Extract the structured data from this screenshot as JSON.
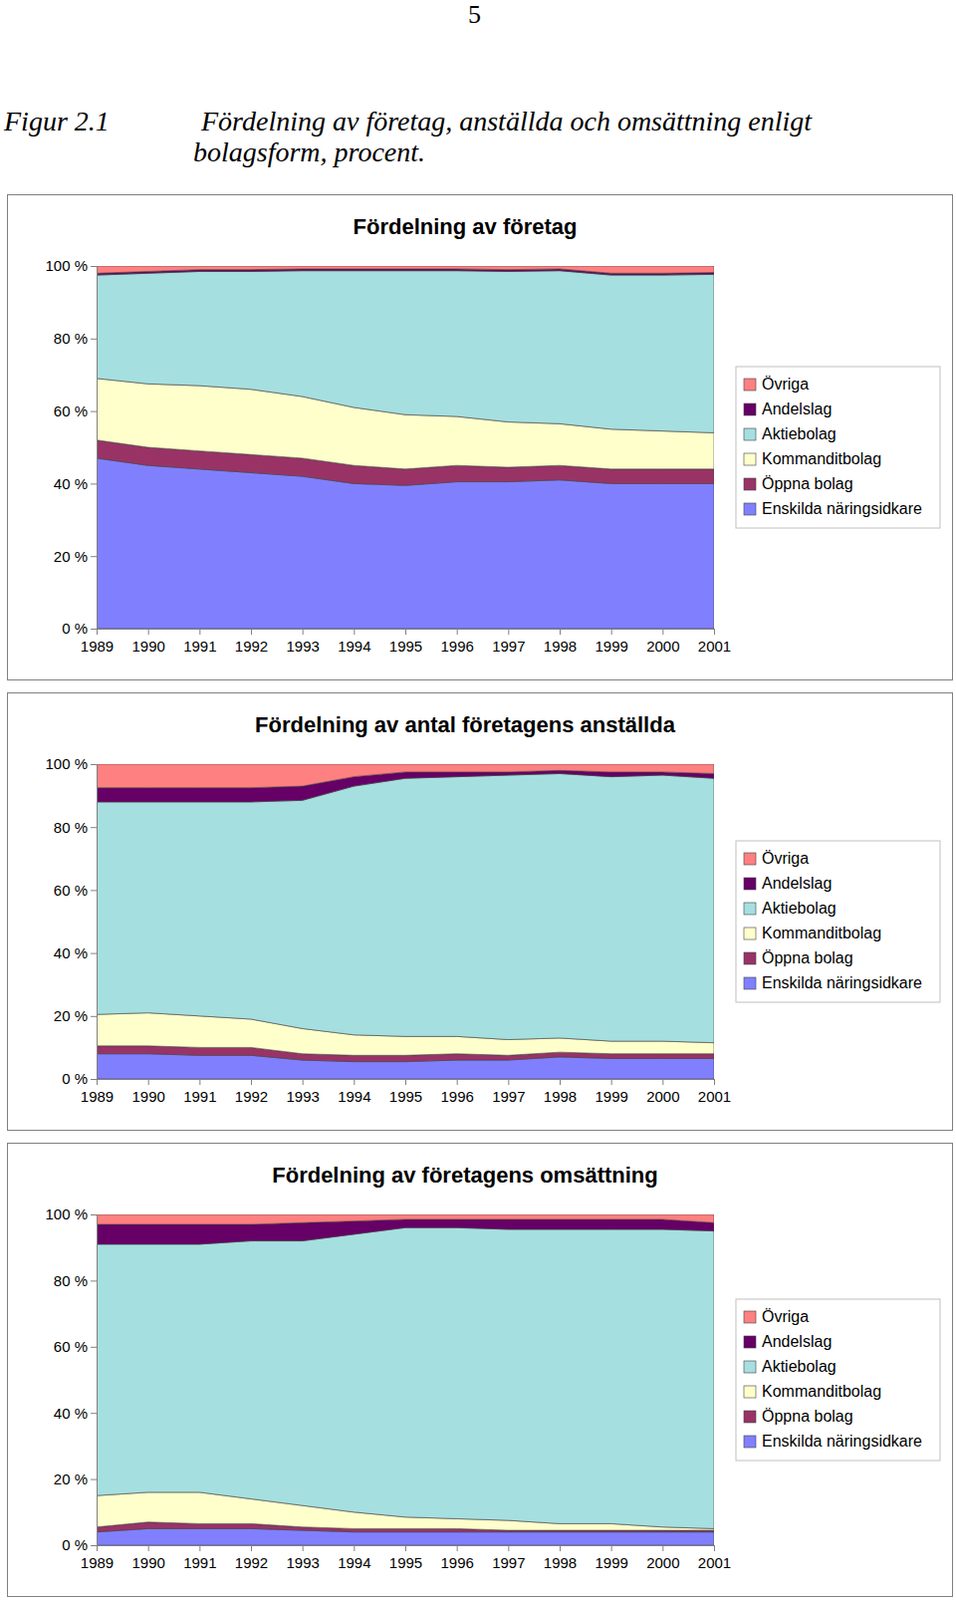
{
  "page_number": "5",
  "caption_label": "Figur 2.1",
  "caption": "Fördelning av företag, anställda och omsättning enligt bolagsform, procent.",
  "chart_data": [
    {
      "type": "area",
      "stacked": true,
      "grid": false,
      "legend": "right",
      "title": "Fördelning av företag",
      "x": [
        1989,
        1990,
        1991,
        1992,
        1993,
        1994,
        1995,
        1996,
        1997,
        1998,
        1999,
        2000,
        2001
      ],
      "xlim": [
        1989,
        2001
      ],
      "xticks": [
        1989,
        1990,
        1991,
        1992,
        1993,
        1994,
        1995,
        1996,
        1997,
        1998,
        1999,
        2000,
        2001
      ],
      "ylim": [
        0,
        100
      ],
      "yticks": [
        {
          "value": 0,
          "label": "0 %"
        },
        {
          "value": 20,
          "label": "20 %"
        },
        {
          "value": 40,
          "label": "40 %"
        },
        {
          "value": 60,
          "label": "60 %"
        },
        {
          "value": 80,
          "label": "80 %"
        },
        {
          "value": 100,
          "label": "100 %"
        }
      ],
      "series": [
        {
          "name": "Enskilda näringsidkare",
          "color": "#8080ff",
          "values": [
            47,
            45,
            44,
            43,
            42,
            40,
            39.5,
            40.5,
            40.5,
            41,
            40,
            40,
            40
          ]
        },
        {
          "name": "Öppna bolag",
          "color": "#993366",
          "values": [
            5,
            5,
            5,
            5,
            5,
            5,
            4.5,
            4.5,
            4,
            4,
            4,
            4,
            4
          ]
        },
        {
          "name": "Kommanditbolag",
          "color": "#ffffcc",
          "values": [
            17,
            17.5,
            18,
            18,
            17,
            16,
            15,
            13.5,
            12.5,
            11.5,
            11,
            10.5,
            10
          ]
        },
        {
          "name": "Aktiebolag",
          "color": "#a6dfe0",
          "values": [
            28.5,
            30.5,
            31.5,
            32.5,
            34.7,
            37.7,
            39.7,
            40.2,
            41.5,
            42.2,
            42.5,
            43,
            43.7
          ]
        },
        {
          "name": "Andelslag",
          "color": "#660066",
          "values": [
            0.5,
            0.5,
            0.5,
            0.5,
            0.5,
            0.5,
            0.5,
            0.5,
            0.5,
            0.5,
            0.5,
            0.5,
            0.5
          ]
        },
        {
          "name": "Övriga",
          "color": "#ff8080",
          "values": [
            2,
            1.5,
            1,
            1,
            0.8,
            0.8,
            0.8,
            0.8,
            1,
            0.8,
            2,
            2,
            1.8
          ]
        }
      ]
    },
    {
      "type": "area",
      "stacked": true,
      "grid": false,
      "legend": "right",
      "title": "Fördelning av antal företagens anställda",
      "x": [
        1989,
        1990,
        1991,
        1992,
        1993,
        1994,
        1995,
        1996,
        1997,
        1998,
        1999,
        2000,
        2001
      ],
      "xlim": [
        1989,
        2001
      ],
      "xticks": [
        1989,
        1990,
        1991,
        1992,
        1993,
        1994,
        1995,
        1996,
        1997,
        1998,
        1999,
        2000,
        2001
      ],
      "ylim": [
        0,
        100
      ],
      "yticks": [
        {
          "value": 0,
          "label": "0 %"
        },
        {
          "value": 20,
          "label": "20 %"
        },
        {
          "value": 40,
          "label": "40 %"
        },
        {
          "value": 60,
          "label": "60 %"
        },
        {
          "value": 80,
          "label": "80 %"
        },
        {
          "value": 100,
          "label": "100 %"
        }
      ],
      "series": [
        {
          "name": "Enskilda näringsidkare",
          "color": "#8080ff",
          "values": [
            8,
            8,
            7.5,
            7.5,
            6,
            5.5,
            5.5,
            6,
            6,
            7,
            6.5,
            6.5,
            6.5
          ]
        },
        {
          "name": "Öppna bolag",
          "color": "#993366",
          "values": [
            2.5,
            2.5,
            2.5,
            2.5,
            2,
            2,
            2,
            2,
            1.5,
            1.5,
            1.5,
            1.5,
            1.5
          ]
        },
        {
          "name": "Kommanditbolag",
          "color": "#ffffcc",
          "values": [
            10,
            10.5,
            10,
            9,
            8,
            6.5,
            6,
            5.5,
            5,
            4.5,
            4,
            4,
            3.5
          ]
        },
        {
          "name": "Aktiebolag",
          "color": "#a6dfe0",
          "values": [
            67.5,
            67,
            68,
            69,
            72.5,
            79,
            82,
            82.5,
            84,
            84,
            84,
            84.5,
            84
          ]
        },
        {
          "name": "Andelslag",
          "color": "#660066",
          "values": [
            4.5,
            4.5,
            4.5,
            4.5,
            4.5,
            3,
            2,
            1.5,
            1,
            1,
            1.5,
            1,
            1.5
          ]
        },
        {
          "name": "Övriga",
          "color": "#ff8080",
          "values": [
            7.5,
            7.5,
            7.5,
            7.5,
            7,
            4,
            2.5,
            2.5,
            2.5,
            2,
            2.5,
            2.5,
            3
          ]
        }
      ]
    },
    {
      "type": "area",
      "stacked": true,
      "grid": false,
      "legend": "right",
      "title": "Fördelning av företagens omsättning",
      "x": [
        1989,
        1990,
        1991,
        1992,
        1993,
        1994,
        1995,
        1996,
        1997,
        1998,
        1999,
        2000,
        2001
      ],
      "xlim": [
        1989,
        2001
      ],
      "xticks": [
        1989,
        1990,
        1991,
        1992,
        1993,
        1994,
        1995,
        1996,
        1997,
        1998,
        1999,
        2000,
        2001
      ],
      "ylim": [
        0,
        100
      ],
      "yticks": [
        {
          "value": 0,
          "label": "0 %"
        },
        {
          "value": 20,
          "label": "20 %"
        },
        {
          "value": 40,
          "label": "40 %"
        },
        {
          "value": 60,
          "label": "60 %"
        },
        {
          "value": 80,
          "label": "80 %"
        },
        {
          "value": 100,
          "label": "100 %"
        }
      ],
      "series": [
        {
          "name": "Enskilda näringsidkare",
          "color": "#8080ff",
          "values": [
            4,
            5,
            5,
            5,
            4.5,
            4,
            4,
            4,
            4,
            4,
            4,
            4,
            4
          ]
        },
        {
          "name": "Öppna bolag",
          "color": "#993366",
          "values": [
            1.5,
            2,
            1.5,
            1.5,
            1,
            1,
            1,
            1,
            0.5,
            0.5,
            0.5,
            0.5,
            0.5
          ]
        },
        {
          "name": "Kommanditbolag",
          "color": "#ffffcc",
          "values": [
            9.5,
            9,
            9.5,
            7.5,
            6.5,
            5,
            3.5,
            3,
            3,
            2,
            2,
            1,
            0.5
          ]
        },
        {
          "name": "Aktiebolag",
          "color": "#a6dfe0",
          "values": [
            76,
            75,
            75,
            78,
            80,
            84,
            87.5,
            88,
            88,
            89,
            89,
            90,
            90
          ]
        },
        {
          "name": "Andelslag",
          "color": "#660066",
          "values": [
            6,
            6,
            6,
            5,
            5.5,
            4,
            2.5,
            2.5,
            3,
            3,
            3,
            3,
            2.5
          ]
        },
        {
          "name": "Övriga",
          "color": "#ff8080",
          "values": [
            3,
            3,
            3,
            3,
            2.5,
            2,
            1.5,
            1.5,
            1.5,
            1.5,
            1.5,
            1.5,
            2.5
          ]
        }
      ]
    }
  ]
}
